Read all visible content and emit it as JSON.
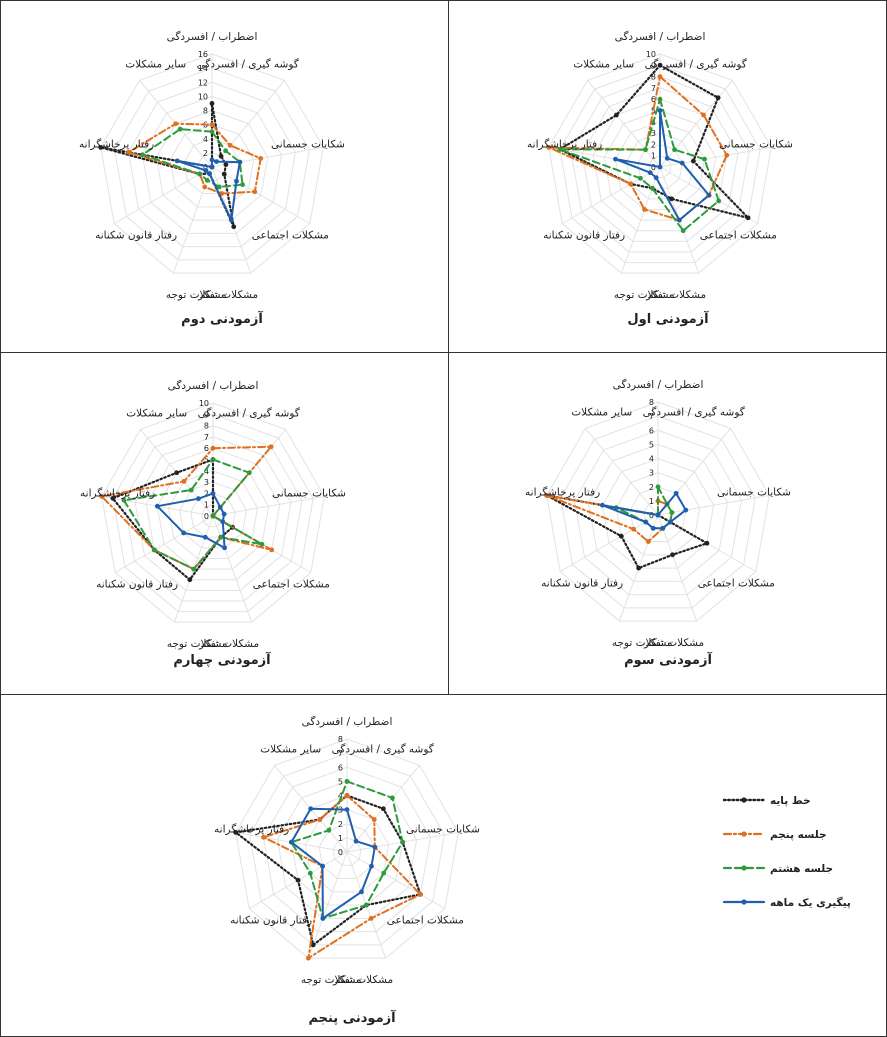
{
  "figure": {
    "categories": [
      "اضطراب / افسردگی",
      "گوشه گیری / افسردگی",
      "شکایات جسمانی",
      "مشکلات اجتماعی",
      "مشکلات تفکر",
      "مشکلات توجه",
      "رفتار قانون شکنانه",
      "رفتار پرخاشگرانه",
      "سایر مشکلات"
    ],
    "legend": [
      {
        "name": "خط پایه",
        "color": "#222222",
        "style": "dotted"
      },
      {
        "name": "جلسه پنجم",
        "color": "#e07020",
        "style": "dashdot"
      },
      {
        "name": "جلسه هشتم",
        "color": "#2e9a3e",
        "style": "dashed"
      },
      {
        "name": "پیگیری یک ماهه",
        "color": "#1f5fae",
        "style": "solid"
      }
    ]
  },
  "chart_data": [
    {
      "type": "radar",
      "title": "آزمودنی اول",
      "rmax": 10,
      "tick_step": 1,
      "ticks": [
        "0",
        "1",
        "2",
        "3",
        "4",
        "5",
        "6",
        "7",
        "8",
        "9",
        "10"
      ],
      "series": [
        {
          "name": "خط پایه",
          "values": [
            9,
            8,
            3,
            9,
            3,
            2,
            3,
            9,
            6
          ]
        },
        {
          "name": "جلسه پنجم",
          "values": [
            8,
            6,
            6,
            5,
            5,
            4,
            3,
            10,
            2
          ]
        },
        {
          "name": "جلسه هشتم",
          "values": [
            6,
            2,
            4,
            6,
            6,
            2,
            2,
            9,
            2
          ]
        },
        {
          "name": "پیگیری یک ماهه",
          "values": [
            5,
            1,
            2,
            5,
            5,
            1,
            1,
            4,
            0
          ]
        }
      ]
    },
    {
      "type": "radar",
      "title": "آزمودنی دوم",
      "rmax": 16,
      "tick_step": 2,
      "ticks": [
        "0",
        "2",
        "4",
        "6",
        "8",
        "10",
        "12",
        "14",
        "16"
      ],
      "series": [
        {
          "name": "خط پایه",
          "values": [
            9,
            2,
            2,
            2,
            9,
            1,
            2,
            16,
            0
          ]
        },
        {
          "name": "جلسه پنجم",
          "values": [
            6,
            4,
            7,
            7,
            4,
            3,
            2,
            12,
            8
          ]
        },
        {
          "name": "جلسه هشتم",
          "values": [
            5,
            3,
            4,
            5,
            3,
            2,
            2,
            10,
            7
          ]
        },
        {
          "name": "پیگیری یک ماهه",
          "values": [
            1,
            1,
            4,
            4,
            8,
            1,
            1,
            5,
            0
          ]
        }
      ]
    },
    {
      "type": "radar",
      "title": "آزمودنی سوم",
      "rmax": 8,
      "tick_step": 1,
      "ticks": [
        "0",
        "1",
        "2",
        "3",
        "4",
        "5",
        "6",
        "7",
        "8"
      ],
      "series": [
        {
          "name": "خط پایه",
          "values": [
            0,
            0,
            0,
            4,
            3,
            4,
            3,
            8,
            0
          ]
        },
        {
          "name": "جلسه پنجم",
          "values": [
            1,
            1,
            1,
            1,
            1,
            2,
            2,
            8,
            0
          ]
        },
        {
          "name": "جلسه هشتم",
          "values": [
            2,
            1,
            1,
            1,
            1,
            1,
            1,
            3,
            0
          ]
        },
        {
          "name": "پیگیری یک ماهه",
          "values": [
            0,
            2,
            2,
            1,
            1,
            1,
            1,
            4,
            0
          ]
        }
      ]
    },
    {
      "type": "radar",
      "title": "آزمودنی چهارم",
      "rmax": 10,
      "tick_step": 1,
      "ticks": [
        "0",
        "1",
        "2",
        "3",
        "4",
        "5",
        "6",
        "7",
        "8",
        "9",
        "10"
      ],
      "series": [
        {
          "name": "خط پایه",
          "values": [
            5,
            0,
            0,
            2,
            2,
            6,
            6,
            9,
            5
          ]
        },
        {
          "name": "جلسه پنجم",
          "values": [
            6,
            8,
            0,
            6,
            2,
            5,
            6,
            10,
            4
          ]
        },
        {
          "name": "جلسه هشتم",
          "values": [
            5,
            5,
            0,
            5,
            2,
            5,
            6,
            8,
            3
          ]
        },
        {
          "name": "پیگیری یک ماهه",
          "values": [
            2,
            1,
            1,
            1,
            3,
            2,
            3,
            5,
            2
          ]
        }
      ]
    },
    {
      "type": "radar",
      "title": "آزمودنی پنجم",
      "rmax": 8,
      "tick_step": 1,
      "ticks": [
        "0",
        "1",
        "2",
        "3",
        "4",
        "5",
        "6",
        "7",
        "8"
      ],
      "series": [
        {
          "name": "خط پایه",
          "values": [
            4,
            4,
            4,
            6,
            4,
            7,
            4,
            8,
            3
          ]
        },
        {
          "name": "جلسه پنجم",
          "values": [
            4,
            3,
            2,
            6,
            5,
            8,
            2,
            6,
            3
          ]
        },
        {
          "name": "جلسه هشتم",
          "values": [
            5,
            5,
            4,
            3,
            4,
            5,
            3,
            4,
            2
          ]
        },
        {
          "name": "پیگیری یک ماهه",
          "values": [
            3,
            1,
            2,
            2,
            3,
            5,
            2,
            4,
            4
          ]
        }
      ]
    }
  ]
}
